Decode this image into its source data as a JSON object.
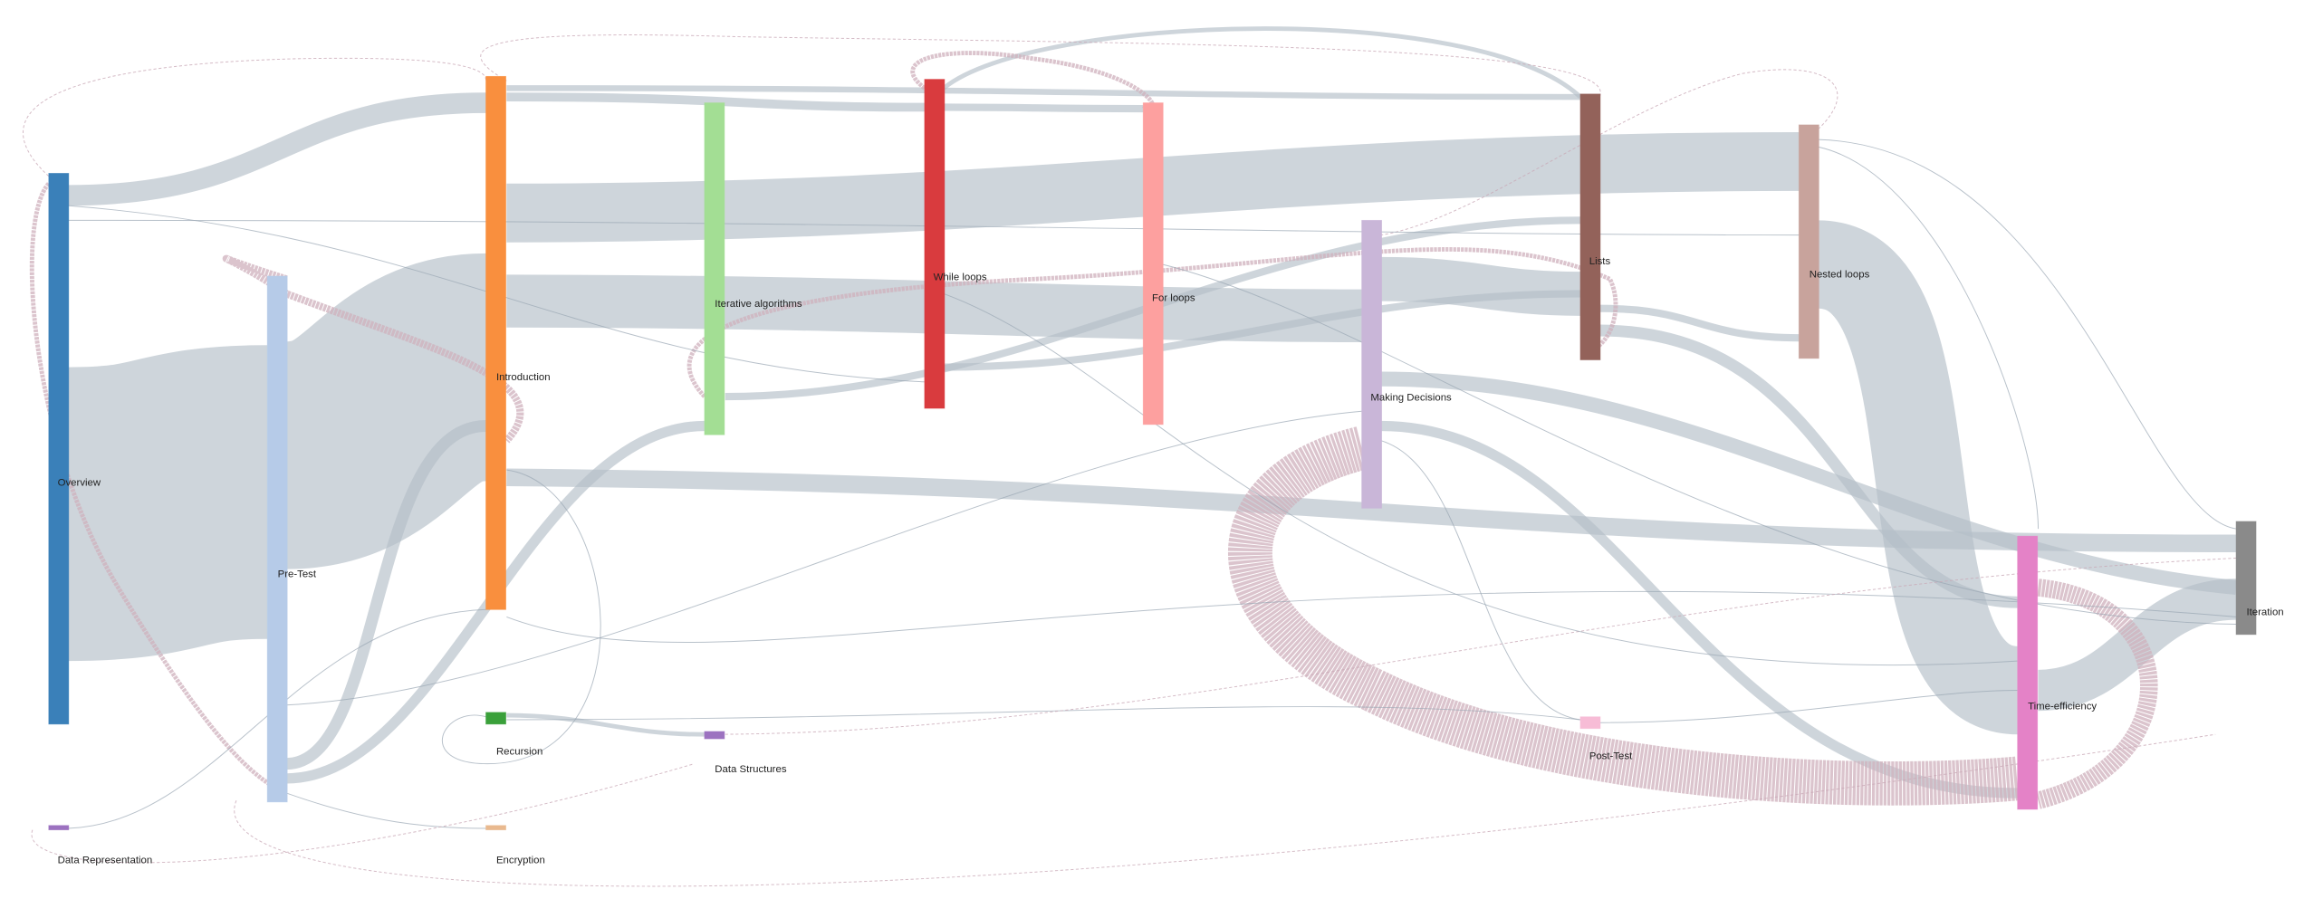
{
  "nodes": [
    {
      "label": "Overview"
    },
    {
      "label": "Pre-Test"
    },
    {
      "label": "Introduction"
    },
    {
      "label": "Iterative algorithms"
    },
    {
      "label": "While loops"
    },
    {
      "label": "For loops"
    },
    {
      "label": "Making Decisions"
    },
    {
      "label": "Lists"
    },
    {
      "label": "Nested loops"
    },
    {
      "label": "Iteration"
    },
    {
      "label": "Time-efficiency"
    },
    {
      "label": "Recursion"
    },
    {
      "label": "Data Structures"
    },
    {
      "label": "Post-Test"
    },
    {
      "label": "Data Representation"
    },
    {
      "label": "Encryption"
    }
  ]
}
